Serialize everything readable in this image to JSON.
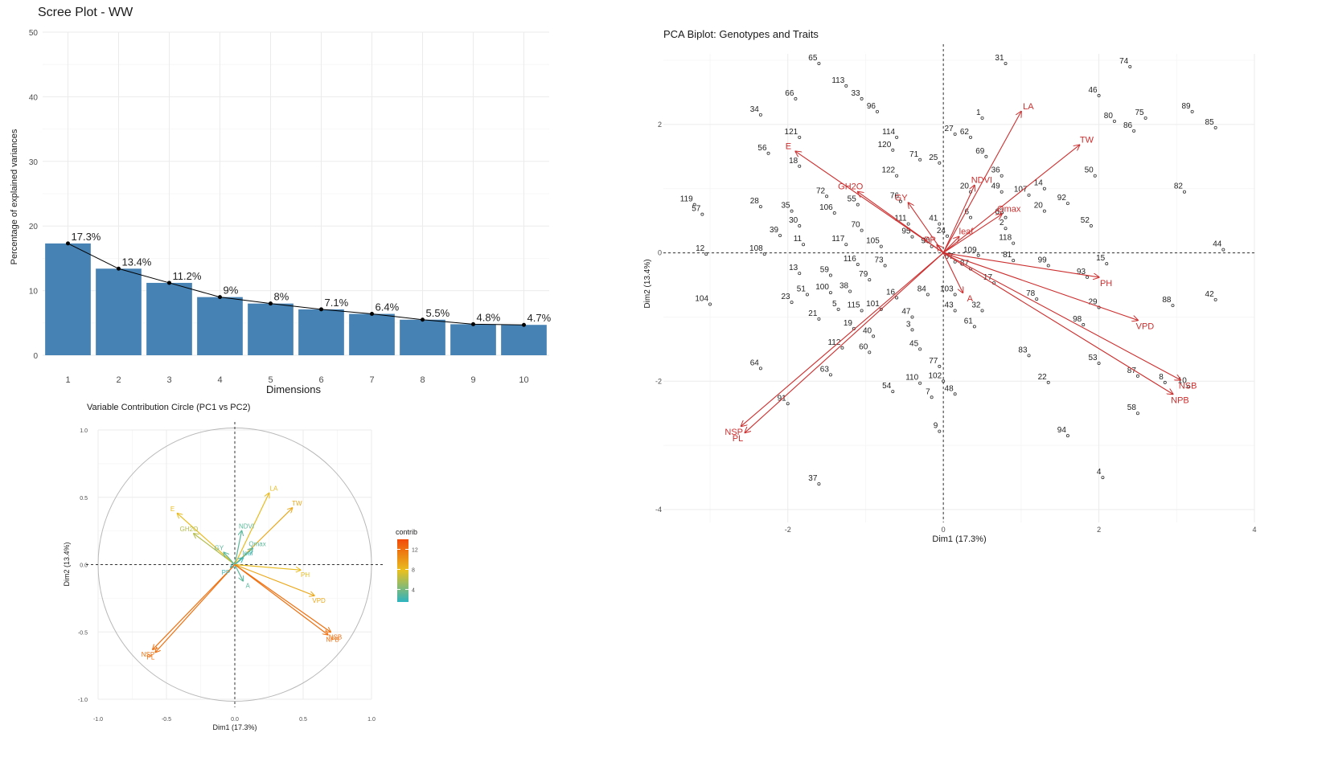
{
  "chart_data": [
    {
      "type": "bar",
      "title": "Scree Plot - WW",
      "xlabel": "Dimensions",
      "ylabel": "Percentage of explained variances",
      "ylim": [
        0,
        50
      ],
      "yticks": [
        "0",
        "10",
        "20",
        "30",
        "40",
        "50"
      ],
      "categories": [
        "1",
        "2",
        "3",
        "4",
        "5",
        "6",
        "7",
        "8",
        "9",
        "10"
      ],
      "values": [
        17.3,
        13.4,
        11.2,
        9.0,
        8.0,
        7.1,
        6.4,
        5.5,
        4.8,
        4.7
      ],
      "labels": [
        "17.3%",
        "13.4%",
        "11.2%",
        "9%",
        "8%",
        "7.1%",
        "6.4%",
        "5.5%",
        "4.8%",
        "4.7%"
      ],
      "colors": {
        "bar": "#4682b4",
        "line": "#000000"
      }
    },
    {
      "type": "scatter",
      "title": "Variable Contribution Circle (PC1 vs PC2)",
      "xlabel": "Dim1 (17.3%)",
      "ylabel": "Dim2 (13.4%)",
      "xlim": [
        -1.0,
        1.0
      ],
      "ylim": [
        -1.0,
        1.0
      ],
      "xticks": [
        "-1.0",
        "-0.5",
        "0.0",
        "0.5",
        "1.0"
      ],
      "yticks": [
        "-1.0",
        "-0.5",
        "0.0",
        "0.5",
        "1.0"
      ],
      "legend_title": "contrib",
      "legend_ticks": [
        "4",
        "8",
        "12"
      ],
      "legend_range": [
        1.5,
        14
      ],
      "legend_colors": [
        "#2eb4c0",
        "#e8c020",
        "#f24a08"
      ],
      "variables": [
        {
          "name": "E",
          "label": "E",
          "x": -0.42,
          "y": 0.38,
          "contrib": 8
        },
        {
          "name": "GH2O",
          "label": "GH2O",
          "x": -0.3,
          "y": 0.23,
          "contrib": 6
        },
        {
          "name": "GY",
          "label": "GY",
          "x": -0.08,
          "y": 0.09,
          "contrib": 3
        },
        {
          "name": "NDVI",
          "label": "NDVI",
          "x": 0.05,
          "y": 0.25,
          "contrib": 3
        },
        {
          "name": "LA",
          "label": "LA",
          "x": 0.25,
          "y": 0.53,
          "contrib": 8
        },
        {
          "name": "TW",
          "label": "TW",
          "x": 0.42,
          "y": 0.42,
          "contrib": 9
        },
        {
          "name": "Qmax",
          "label": "Qmax",
          "x": 0.13,
          "y": 0.12,
          "contrib": 3
        },
        {
          "name": "leaf",
          "label": "leaf",
          "x": 0.06,
          "y": 0.05,
          "contrib": 2
        },
        {
          "name": "PP",
          "label": "PP",
          "x": -0.03,
          "y": -0.02,
          "contrib": 2
        },
        {
          "name": "A",
          "label": "A",
          "x": 0.06,
          "y": -0.12,
          "contrib": 3
        },
        {
          "name": "PH",
          "label": "PH",
          "x": 0.48,
          "y": -0.04,
          "contrib": 8
        },
        {
          "name": "VPD",
          "label": "VPD",
          "x": 0.58,
          "y": -0.23,
          "contrib": 9
        },
        {
          "name": "NSB",
          "label": "NSB",
          "x": 0.7,
          "y": -0.5,
          "contrib": 12
        },
        {
          "name": "NPB",
          "label": "NPB",
          "x": 0.68,
          "y": -0.52,
          "contrib": 12
        },
        {
          "name": "NSP",
          "label": "NSP",
          "x": -0.6,
          "y": -0.63,
          "contrib": 12
        },
        {
          "name": "PL",
          "label": "PL",
          "x": -0.58,
          "y": -0.65,
          "contrib": 12
        }
      ]
    },
    {
      "type": "scatter",
      "title": "PCA Biplot: Genotypes and Traits",
      "xlabel": "Dim1 (17.3%)",
      "ylabel": "Dim2 (13.4%)",
      "xlim": [
        -3.6,
        4.0
      ],
      "ylim": [
        -4.2,
        3.1
      ],
      "xticks": [
        "-2",
        "0",
        "2",
        "4"
      ],
      "yticks": [
        "-4",
        "-2",
        "0",
        "2"
      ],
      "colors": {
        "arrow": "#cc2f2f",
        "point": "#333333"
      },
      "points": [
        [
          "31",
          0.8,
          2.95
        ],
        [
          "65",
          -1.6,
          2.95
        ],
        [
          "74",
          2.4,
          2.9
        ],
        [
          "113",
          -1.25,
          2.6
        ],
        [
          "33",
          -1.05,
          2.4
        ],
        [
          "96",
          -0.85,
          2.2
        ],
        [
          "66",
          -1.9,
          2.4
        ],
        [
          "34",
          -2.35,
          2.15
        ],
        [
          "46",
          2.0,
          2.45
        ],
        [
          "1",
          0.5,
          2.1
        ],
        [
          "80",
          2.2,
          2.05
        ],
        [
          "75",
          2.6,
          2.1
        ],
        [
          "89",
          3.2,
          2.2
        ],
        [
          "85",
          3.5,
          1.95
        ],
        [
          "86",
          2.45,
          1.9
        ],
        [
          "121",
          -1.85,
          1.8
        ],
        [
          "114",
          -0.6,
          1.8
        ],
        [
          "27",
          0.15,
          1.85
        ],
        [
          "62",
          0.35,
          1.8
        ],
        [
          "120",
          -0.65,
          1.6
        ],
        [
          "71",
          -0.3,
          1.45
        ],
        [
          "25",
          -0.05,
          1.4
        ],
        [
          "69",
          0.55,
          1.5
        ],
        [
          "56",
          -2.25,
          1.55
        ],
        [
          "18",
          -1.85,
          1.35
        ],
        [
          "122",
          -0.6,
          1.2
        ],
        [
          "36",
          0.75,
          1.2
        ],
        [
          "50",
          1.95,
          1.2
        ],
        [
          "82",
          3.1,
          0.95
        ],
        [
          "28",
          -2.35,
          0.72
        ],
        [
          "119",
          -3.2,
          0.75
        ],
        [
          "57",
          -3.1,
          0.6
        ],
        [
          "72",
          -1.5,
          0.88
        ],
        [
          "35",
          -1.95,
          0.65
        ],
        [
          "106",
          -1.4,
          0.62
        ],
        [
          "55",
          -1.1,
          0.75
        ],
        [
          "76",
          -0.55,
          0.8
        ],
        [
          "20",
          0.35,
          0.95
        ],
        [
          "49",
          0.75,
          0.95
        ],
        [
          "14",
          1.3,
          1.0
        ],
        [
          "107",
          1.1,
          0.9
        ],
        [
          "92",
          1.6,
          0.77
        ],
        [
          "20",
          1.3,
          0.65
        ],
        [
          "111",
          -0.45,
          0.45
        ],
        [
          "41",
          -0.05,
          0.45
        ],
        [
          "6",
          0.35,
          0.55
        ],
        [
          "63",
          0.8,
          0.55
        ],
        [
          "2",
          0.8,
          0.38
        ],
        [
          "52",
          1.9,
          0.42
        ],
        [
          "30",
          -1.85,
          0.42
        ],
        [
          "70",
          -1.05,
          0.35
        ],
        [
          "39",
          -2.1,
          0.27
        ],
        [
          "95",
          -0.4,
          0.25
        ],
        [
          "24",
          0.05,
          0.26
        ],
        [
          "11",
          -1.8,
          0.13
        ],
        [
          "117",
          -1.25,
          0.13
        ],
        [
          "105",
          -0.8,
          0.1
        ],
        [
          "90",
          -0.15,
          0.1
        ],
        [
          "118",
          0.9,
          0.15
        ],
        [
          "44",
          3.6,
          0.05
        ],
        [
          "12",
          -3.05,
          -0.02
        ],
        [
          "108",
          -2.3,
          -0.02
        ],
        [
          "109",
          0.45,
          -0.04
        ],
        [
          "67",
          0.15,
          -0.14
        ],
        [
          "81",
          0.9,
          -0.12
        ],
        [
          "99",
          1.35,
          -0.2
        ],
        [
          "15",
          2.1,
          -0.17
        ],
        [
          "116",
          -1.1,
          -0.18
        ],
        [
          "73",
          -0.75,
          -0.2
        ],
        [
          "87",
          0.35,
          -0.25
        ],
        [
          "93",
          1.85,
          -0.38
        ],
        [
          "13",
          -1.85,
          -0.32
        ],
        [
          "59",
          -1.45,
          -0.35
        ],
        [
          "79",
          -0.95,
          -0.42
        ],
        [
          "17",
          0.65,
          -0.47
        ],
        [
          "51",
          -1.75,
          -0.65
        ],
        [
          "100",
          -1.45,
          -0.62
        ],
        [
          "38",
          -1.2,
          -0.6
        ],
        [
          "16",
          -0.6,
          -0.7
        ],
        [
          "84",
          -0.2,
          -0.65
        ],
        [
          "103",
          0.15,
          -0.65
        ],
        [
          "23",
          -1.95,
          -0.77
        ],
        [
          "104",
          -3.0,
          -0.8
        ],
        [
          "78",
          1.2,
          -0.72
        ],
        [
          "29",
          2.0,
          -0.85
        ],
        [
          "88",
          2.95,
          -0.82
        ],
        [
          "42",
          3.5,
          -0.73
        ],
        [
          "5",
          -1.35,
          -0.88
        ],
        [
          "115",
          -1.05,
          -0.9
        ],
        [
          "101",
          -0.8,
          -0.88
        ],
        [
          "43",
          0.15,
          -0.9
        ],
        [
          "32",
          0.5,
          -0.9
        ],
        [
          "21",
          -1.6,
          -1.03
        ],
        [
          "47",
          -0.4,
          -1.0
        ],
        [
          "19",
          -1.15,
          -1.18
        ],
        [
          "3",
          -0.4,
          -1.2
        ],
        [
          "40",
          -0.9,
          -1.3
        ],
        [
          "61",
          0.4,
          -1.15
        ],
        [
          "98",
          1.8,
          -1.12
        ],
        [
          "112",
          -1.3,
          -1.48
        ],
        [
          "60",
          -0.95,
          -1.55
        ],
        [
          "45",
          -0.3,
          -1.5
        ],
        [
          "83",
          1.1,
          -1.6
        ],
        [
          "53",
          2.0,
          -1.72
        ],
        [
          "64",
          -2.35,
          -1.8
        ],
        [
          "63",
          -1.45,
          -1.9
        ],
        [
          "77",
          -0.05,
          -1.77
        ],
        [
          "87",
          2.5,
          -1.92
        ],
        [
          "8",
          2.85,
          -2.02
        ],
        [
          "10",
          3.15,
          -2.08
        ],
        [
          "22",
          1.35,
          -2.02
        ],
        [
          "110",
          -0.3,
          -2.03
        ],
        [
          "102",
          0.0,
          -2.0
        ],
        [
          "54",
          -0.65,
          -2.16
        ],
        [
          "48",
          0.15,
          -2.2
        ],
        [
          "7",
          -0.15,
          -2.25
        ],
        [
          "91",
          -2.0,
          -2.35
        ],
        [
          "58",
          2.5,
          -2.5
        ],
        [
          "9",
          -0.05,
          -2.78
        ],
        [
          "94",
          1.6,
          -2.85
        ],
        [
          "4",
          2.05,
          -3.5
        ],
        [
          "37",
          -1.6,
          -3.6
        ]
      ],
      "arrows": [
        {
          "name": "E",
          "x": -1.9,
          "y": 1.58
        },
        {
          "name": "GH2O",
          "x": -1.1,
          "y": 0.95
        },
        {
          "name": "GY",
          "x": -0.45,
          "y": 0.78
        },
        {
          "name": "NDVI",
          "x": 0.4,
          "y": 1.05
        },
        {
          "name": "LA",
          "x": 1.0,
          "y": 2.2
        },
        {
          "name": "TW",
          "x": 1.75,
          "y": 1.68
        },
        {
          "name": "Qmax",
          "x": 0.75,
          "y": 0.6
        },
        {
          "name": "leaf",
          "x": 0.2,
          "y": 0.25
        },
        {
          "name": "PP",
          "x": -0.08,
          "y": 0.12
        },
        {
          "name": "A",
          "x": 0.25,
          "y": -0.62
        },
        {
          "name": "PH",
          "x": 2.0,
          "y": -0.38
        },
        {
          "name": "VPD",
          "x": 2.5,
          "y": -1.05
        },
        {
          "name": "NSB",
          "x": 3.05,
          "y": -1.98
        },
        {
          "name": "NPB",
          "x": 2.95,
          "y": -2.2
        },
        {
          "name": "NSP",
          "x": -2.6,
          "y": -2.7
        },
        {
          "name": "PL",
          "x": -2.55,
          "y": -2.8
        }
      ]
    }
  ]
}
